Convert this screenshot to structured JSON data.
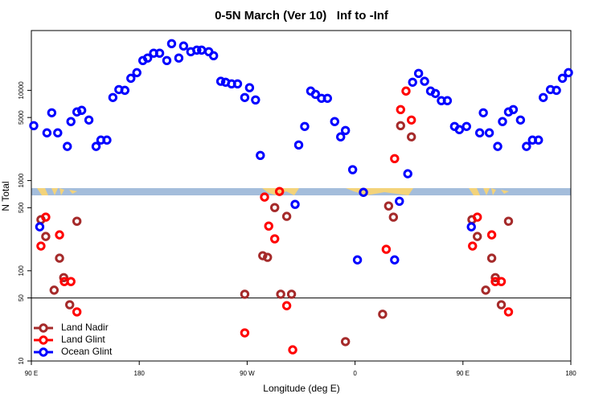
{
  "chart_data": {
    "type": "scatter",
    "title": "0-5N March (Ver 10)   Inf to -Inf",
    "xlabel": "Longitude (deg E)",
    "ylabel": "N Total",
    "xlim": [
      90,
      540
    ],
    "ylim": [
      10,
      46000
    ],
    "log_y": true,
    "xticks": [
      {
        "value": 90,
        "label": "90 E"
      },
      180,
      {
        "value": 270,
        "label": "90 W"
      },
      {
        "value": 360,
        "label": "0"
      },
      {
        "value": 450,
        "label": "90 E"
      },
      {
        "value": 540,
        "label": "180"
      }
    ],
    "yticks": [
      10,
      50,
      100,
      500,
      1000,
      5000,
      10000
    ],
    "hline": 50,
    "legend": "lower left",
    "series": [
      {
        "name": "Land Nadir",
        "color": "#a52a2a",
        "x": [
          98,
          102,
          113.5,
          117,
          109,
          122,
          128,
          268,
          283,
          287,
          293,
          298,
          303,
          307,
          352,
          383,
          388,
          392,
          398,
          407,
          457.5,
          462,
          474,
          477,
          469,
          482,
          488
        ],
        "values": [
          369,
          240,
          138,
          84,
          61,
          42,
          354,
          55,
          147,
          141,
          502,
          55,
          401,
          55,
          16.4,
          33,
          523,
          393,
          4060,
          3050,
          369,
          240,
          138,
          84,
          61,
          42,
          354
        ]
      },
      {
        "name": "Land Glint",
        "color": "#ff0000",
        "x": [
          98,
          102,
          113.5,
          117.5,
          123,
          128,
          268,
          284.5,
          288,
          293,
          297,
          303,
          308,
          386,
          393,
          398,
          402.5,
          407,
          458,
          462,
          474,
          477,
          482,
          488
        ],
        "values": [
          188,
          393,
          250,
          76,
          76,
          35,
          20.5,
          656,
          313,
          226,
          757,
          41,
          13.3,
          173,
          1750,
          6120,
          9820,
          4690,
          188,
          393,
          250,
          76,
          76,
          35
        ]
      },
      {
        "name": "Ocean Glint",
        "color": "#0000ff",
        "x": [
          92,
          97,
          103,
          107,
          112,
          120,
          123,
          128,
          132,
          138,
          144,
          148,
          153,
          158,
          163,
          168,
          173,
          178,
          183,
          187,
          192,
          197,
          203,
          207,
          213,
          217,
          223,
          228,
          232,
          238,
          242,
          248,
          252,
          257,
          262,
          268,
          272,
          277,
          281,
          310,
          313,
          318,
          323,
          327,
          332,
          337,
          343,
          348,
          352,
          358,
          362,
          367,
          393,
          397,
          404,
          408,
          413,
          418,
          423,
          427,
          432,
          437,
          443,
          447,
          453,
          457,
          464,
          467,
          472,
          479,
          483,
          488,
          492,
          498,
          503,
          508,
          513,
          517,
          523,
          528,
          533,
          538
        ],
        "values": [
          4060,
          307,
          3380,
          5640,
          3380,
          2390,
          4510,
          5760,
          6000,
          4690,
          2390,
          2810,
          2810,
          8330,
          10200,
          10000,
          13600,
          15700,
          21400,
          22800,
          25800,
          25800,
          21400,
          32900,
          22800,
          31000,
          26800,
          27900,
          27900,
          26800,
          24200,
          12600,
          12300,
          11800,
          11800,
          8330,
          10700,
          7830,
          1900,
          545,
          2480,
          3980,
          9820,
          9040,
          8160,
          8160,
          4510,
          3050,
          3590,
          1320,
          132,
          740,
          132,
          590,
          1190,
          12300,
          15400,
          12600,
          9820,
          9230,
          7680,
          7680,
          3980,
          3670,
          3980,
          307,
          3380,
          5640,
          3380,
          2390,
          4510,
          5760,
          6120,
          4690,
          2390,
          2810,
          2810,
          8330,
          10200,
          10000,
          13600,
          15700
        ]
      }
    ]
  }
}
